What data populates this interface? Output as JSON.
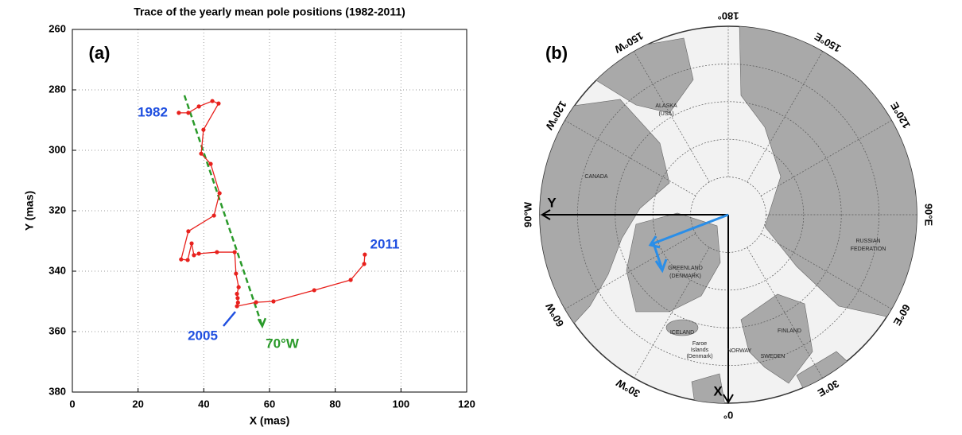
{
  "chart_data": {
    "type": "line",
    "title": "Trace of the yearly mean pole positions (1982-2011)",
    "panel_label": "(a)",
    "xlabel": "X (mas)",
    "ylabel": "Y (mas)",
    "x": [
      32.4,
      35.3,
      38.5,
      42.6,
      44.5,
      39.9,
      39.2,
      42.1,
      44.8,
      43.1,
      35.3,
      33.1,
      35.1,
      36.3,
      37.0,
      38.5,
      44.0,
      49.4,
      49.8,
      50.6,
      50.1,
      50.3,
      50.4,
      50.1,
      55.9,
      61.2,
      73.6,
      84.7,
      88.8,
      89.0
    ],
    "series": [
      {
        "color": "#e8211d",
        "values": [
          287.6,
          287.6,
          285.5,
          283.7,
          284.5,
          293.2,
          301.1,
          304.5,
          314.2,
          321.6,
          326.8,
          336.1,
          336.3,
          330.8,
          334.7,
          334.2,
          333.7,
          333.7,
          340.8,
          345.3,
          347.5,
          348.9,
          350.4,
          351.6,
          350.3,
          350.0,
          346.3,
          342.9,
          337.6,
          334.5
        ]
      }
    ],
    "reference_line": {
      "x": [
        34.1,
        57.8
      ],
      "y": [
        281.8,
        358.2
      ],
      "color": "#2a9a2a",
      "label": "70°W"
    },
    "annotations": [
      "1982",
      "2005",
      "2011"
    ],
    "annotation_color": "#1f4fe0",
    "xlim": [
      0,
      120
    ],
    "ylim": [
      260,
      380
    ],
    "y_inverted": true,
    "xticks": [
      0,
      20,
      40,
      60,
      80,
      100,
      120
    ],
    "yticks": [
      260,
      280,
      300,
      320,
      340,
      360,
      380
    ],
    "grid": true
  },
  "map": {
    "panel_label": "(b)",
    "meridian_labels": [
      "0°",
      "30°E",
      "60°E",
      "90°E",
      "120°E",
      "150°E",
      "180°",
      "150°W",
      "120°W",
      "90°W",
      "60°W",
      "30°W"
    ],
    "axis_labels": [
      "X",
      "Y"
    ],
    "regions": [
      "ALASKA",
      "(USA)",
      "CANADA",
      "GREENLAND",
      "(DENMARK)",
      "RUSSIAN",
      "FEDERATION",
      "ICELAND",
      "NORWAY",
      "SWEDEN",
      "FINLAND",
      "Faroe",
      "Islands",
      "(Denmark)"
    ]
  }
}
